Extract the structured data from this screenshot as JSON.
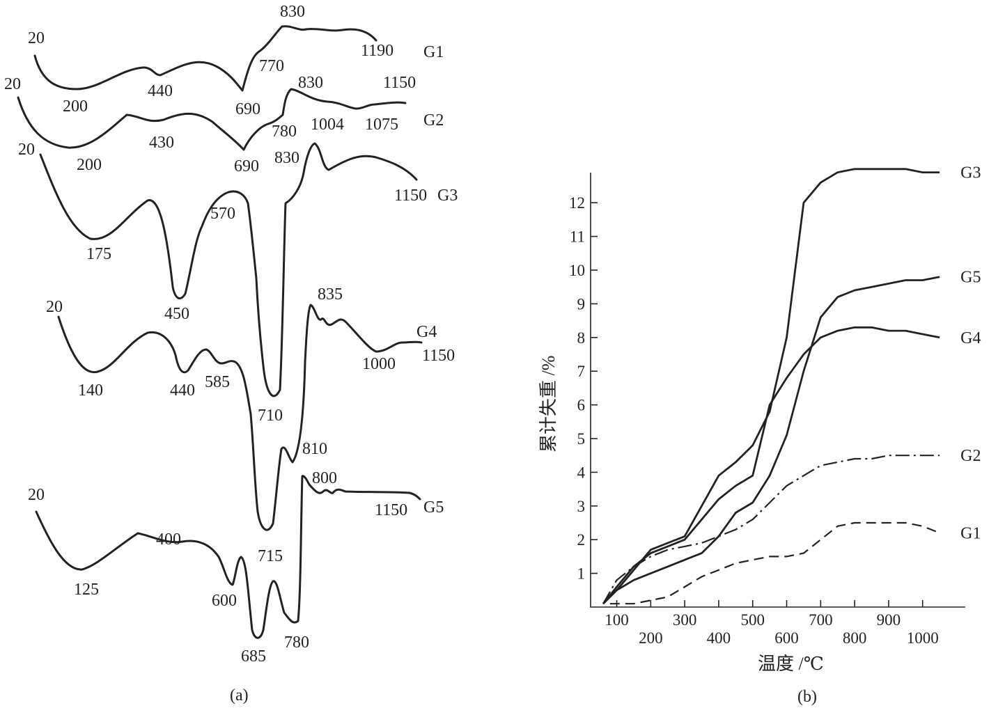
{
  "chart_data": [
    {
      "type": "line",
      "panel_label": "(a)",
      "series": [
        {
          "name": "G1",
          "peaks": [
            20,
            200,
            440,
            690,
            770,
            830,
            1190
          ]
        },
        {
          "name": "G2",
          "peaks": [
            20,
            200,
            430,
            690,
            780,
            830,
            1004,
            1075,
            1150
          ]
        },
        {
          "name": "G3",
          "peaks": [
            20,
            175,
            450,
            570,
            710,
            830,
            1150
          ]
        },
        {
          "name": "G4",
          "peaks": [
            20,
            140,
            440,
            585,
            715,
            835,
            1000,
            1150
          ]
        },
        {
          "name": "G5",
          "peaks": [
            20,
            125,
            400,
            600,
            685,
            780,
            810,
            800,
            1150
          ]
        }
      ]
    },
    {
      "type": "line",
      "panel_label": "(b)",
      "xlabel": "温度 /℃",
      "ylabel": "累计失重 /%",
      "xlim": [
        40,
        1100
      ],
      "ylim": [
        0,
        13
      ],
      "xticks": [
        100,
        200,
        300,
        400,
        500,
        600,
        700,
        800,
        900,
        1000
      ],
      "yticks": [
        1,
        2,
        3,
        4,
        5,
        6,
        7,
        8,
        9,
        10,
        11,
        12
      ],
      "series": [
        {
          "name": "G3",
          "line_style": "solid",
          "color": "#222222",
          "x": [
            60,
            100,
            150,
            200,
            250,
            300,
            350,
            400,
            450,
            500,
            550,
            600,
            650,
            700,
            750,
            800,
            850,
            900,
            950,
            1000,
            1050
          ],
          "y": [
            0.1,
            0.5,
            1.1,
            1.7,
            1.9,
            2.1,
            3.0,
            3.9,
            4.3,
            4.8,
            5.8,
            8.0,
            12.0,
            12.6,
            12.9,
            13.0,
            13.0,
            13.0,
            13.0,
            12.9,
            12.9
          ]
        },
        {
          "name": "G5",
          "line_style": "solid",
          "color": "#222222",
          "x": [
            60,
            100,
            150,
            200,
            250,
            300,
            350,
            400,
            450,
            500,
            550,
            600,
            650,
            700,
            750,
            800,
            850,
            900,
            950,
            1000,
            1050
          ],
          "y": [
            0.1,
            0.5,
            0.8,
            1.0,
            1.2,
            1.4,
            1.6,
            2.1,
            2.8,
            3.1,
            3.9,
            5.1,
            7.0,
            8.6,
            9.2,
            9.4,
            9.5,
            9.6,
            9.7,
            9.7,
            9.8
          ]
        },
        {
          "name": "G4",
          "line_style": "solid",
          "color": "#222222",
          "x": [
            60,
            100,
            150,
            200,
            250,
            300,
            350,
            400,
            450,
            500,
            550,
            600,
            650,
            700,
            750,
            800,
            850,
            900,
            950,
            1000,
            1050
          ],
          "y": [
            0.1,
            0.6,
            1.2,
            1.6,
            1.8,
            2.0,
            2.6,
            3.2,
            3.6,
            3.9,
            6.0,
            6.8,
            7.5,
            8.0,
            8.2,
            8.3,
            8.3,
            8.2,
            8.2,
            8.1,
            8.0
          ]
        },
        {
          "name": "G2",
          "line_style": "dash-dot",
          "color": "#222222",
          "x": [
            60,
            100,
            150,
            200,
            250,
            300,
            350,
            400,
            450,
            500,
            550,
            600,
            650,
            700,
            750,
            800,
            850,
            900,
            950,
            1000,
            1050
          ],
          "y": [
            0.1,
            0.8,
            1.2,
            1.5,
            1.7,
            1.8,
            1.9,
            2.1,
            2.3,
            2.6,
            3.1,
            3.6,
            3.9,
            4.2,
            4.3,
            4.4,
            4.4,
            4.5,
            4.5,
            4.5,
            4.5
          ]
        },
        {
          "name": "G1",
          "line_style": "dashed",
          "color": "#222222",
          "x": [
            80,
            150,
            200,
            250,
            300,
            350,
            400,
            450,
            500,
            550,
            600,
            650,
            700,
            750,
            800,
            850,
            900,
            950,
            1000,
            1050
          ],
          "y": [
            0.1,
            0.1,
            0.2,
            0.3,
            0.6,
            0.9,
            1.1,
            1.3,
            1.4,
            1.5,
            1.5,
            1.6,
            2.0,
            2.4,
            2.5,
            2.5,
            2.5,
            2.5,
            2.4,
            2.2
          ]
        }
      ]
    }
  ]
}
